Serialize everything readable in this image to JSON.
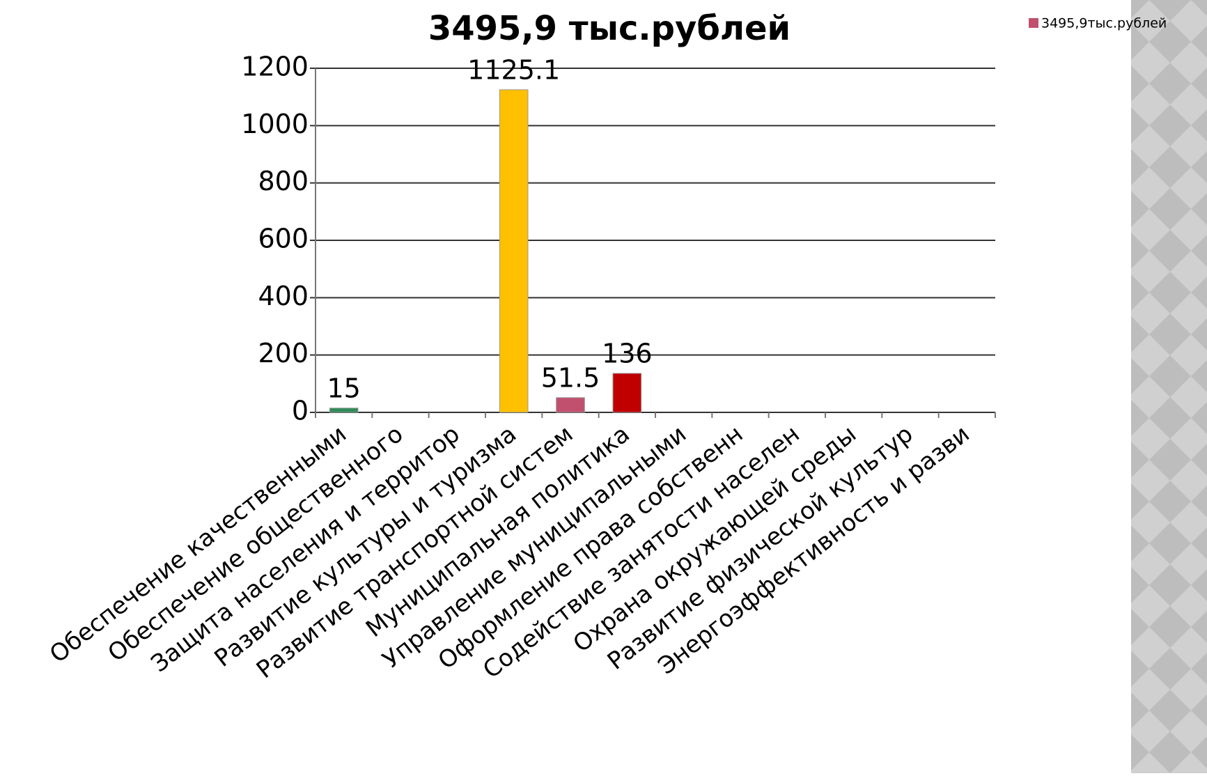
{
  "chart_data": {
    "type": "bar",
    "title": "3495,9 тыс.рублей",
    "categories": [
      "Обеспечение качественными",
      "Обеспечение общественного",
      "Защита населения и территор",
      "Развитие культуры и туризма",
      "Развитие транспортной систем",
      "Муниципальная политика",
      "Управление муниципальными",
      "Оформление права собственн",
      "Содействие занятости населен",
      "Охрана окружающей среды",
      "Развитие физической культур",
      "Энергоэффективность и разви"
    ],
    "series": [
      {
        "name": "3495,9тыс.рублей",
        "color": "#c0506e",
        "values": [
          15,
          null,
          null,
          1125.1,
          51.5,
          136,
          null,
          null,
          null,
          null,
          null,
          null
        ],
        "point_colors": [
          "#2e8b57",
          null,
          null,
          "#ffc000",
          "#c0506e",
          "#c00000",
          null,
          null,
          null,
          null,
          null,
          null
        ]
      }
    ],
    "ylim": [
      0,
      1200
    ],
    "yticks": [
      0,
      200,
      400,
      600,
      800,
      1000,
      1200
    ],
    "grid": true,
    "legend": "top-right"
  }
}
